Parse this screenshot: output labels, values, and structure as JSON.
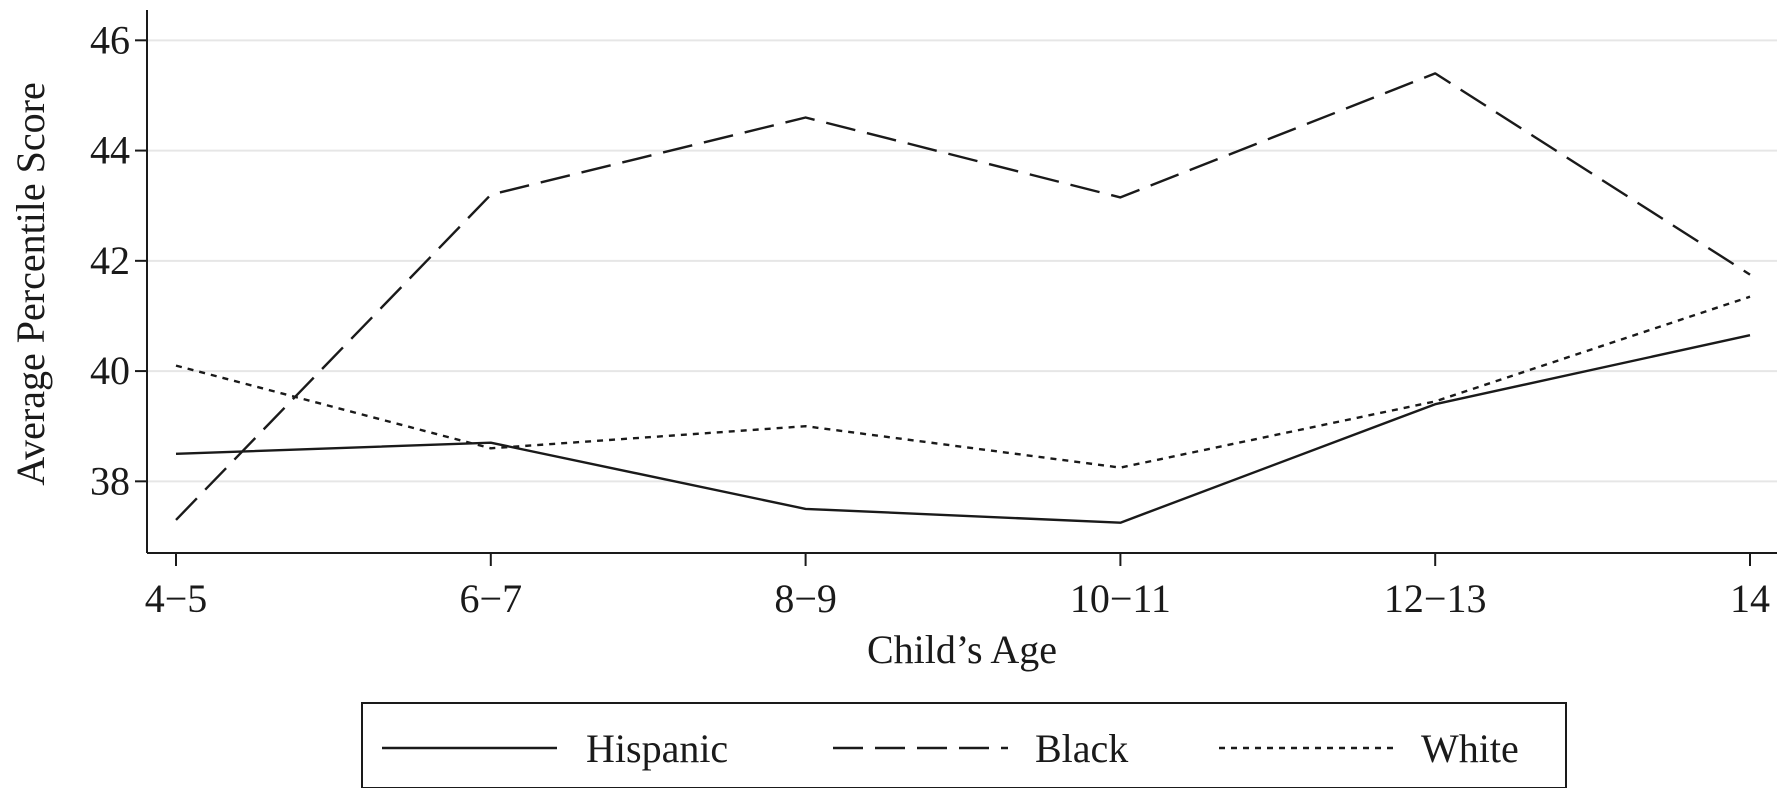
{
  "chart_data": {
    "type": "line",
    "categories": [
      "4−5",
      "6−7",
      "8−9",
      "10−11",
      "12−13",
      "14"
    ],
    "series": [
      {
        "name": "Hispanic",
        "style": "solid",
        "values": [
          38.5,
          38.7,
          37.5,
          37.25,
          39.4,
          40.65
        ]
      },
      {
        "name": "Black",
        "style": "dashed",
        "values": [
          37.3,
          43.2,
          44.6,
          43.15,
          45.4,
          41.75
        ]
      },
      {
        "name": "White",
        "style": "dotted",
        "values": [
          40.1,
          38.6,
          39.0,
          38.25,
          39.45,
          41.35
        ]
      }
    ],
    "xlabel": "Child’s Age",
    "ylabel": "Average Percentile Score",
    "ylim": [
      36.7,
      46.55
    ],
    "yticks": [
      38,
      40,
      42,
      44,
      46
    ],
    "grid": true,
    "legend_position": "bottom",
    "line_color": "#1a1a1a",
    "grid_color": "#e6e6e6"
  }
}
